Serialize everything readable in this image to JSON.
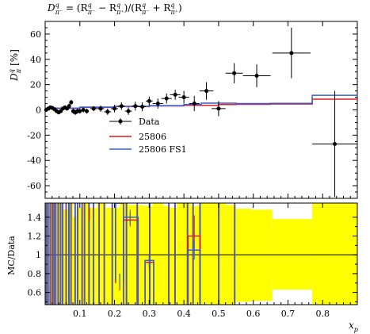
{
  "chart_data": {
    "type": "scatter",
    "title": "D^q_{π⁻} = (R^q_{π⁻} − R^q_{π⁺})/(R^q_{π⁻} + R^q_{π⁺})",
    "title_parts": {
      "lhs": "D",
      "lhs_sup": "q",
      "lhs_sub": "π⁻",
      "eq": " = (R",
      "a_sup": "q",
      "a_sub": "π⁻",
      "minus": " − R",
      "b_sup": "q",
      "b_sub": "π⁺",
      "mid": ")/(R",
      "c_sup": "q",
      "c_sub": "π⁻",
      "plus": " + R",
      "d_sup": "q",
      "d_sub": "π⁺",
      "end": ")"
    },
    "ylabel": "D",
    "ylabel_sup": "q",
    "ylabel_sub": "π",
    "ylabel_unit": "[%]",
    "xlabel": "x",
    "xlabel_sub": "p",
    "ratio_ylabel": "MC/Data",
    "xlim": [
      0.0,
      0.9
    ],
    "ylim": [
      -70,
      70
    ],
    "ratio_ylim": [
      0.47,
      1.55
    ],
    "xticks": [
      "0.1",
      "0.2",
      "0.3",
      "0.4",
      "0.5",
      "0.6",
      "0.7",
      "0.8"
    ],
    "xtick_values": [
      0.1,
      0.2,
      0.3,
      0.4,
      0.5,
      0.6,
      0.7,
      0.8
    ],
    "yticks": [
      "60",
      "40",
      "20",
      "0",
      "-20",
      "-40",
      "-60"
    ],
    "ytick_values": [
      60,
      40,
      20,
      0,
      -20,
      -40,
      -60
    ],
    "ratio_yticks": [
      "1.4",
      "1.2",
      "1",
      "0.8",
      "0.6"
    ],
    "ratio_ytick_values": [
      1.4,
      1.2,
      1.0,
      0.8,
      0.6
    ],
    "legend_position": "center",
    "legend": [
      "Data",
      "25806",
      "25806 FS1"
    ],
    "series": [
      {
        "name": "Data",
        "color": "#000000",
        "points": [
          {
            "x": 0.003,
            "y": 0.0,
            "xe": 0.003,
            "ye": 1.5
          },
          {
            "x": 0.009,
            "y": 1.0,
            "xe": 0.003,
            "ye": 1.5
          },
          {
            "x": 0.015,
            "y": 2.0,
            "xe": 0.003,
            "ye": 1.5
          },
          {
            "x": 0.021,
            "y": 1.5,
            "xe": 0.003,
            "ye": 1.5
          },
          {
            "x": 0.027,
            "y": 0.5,
            "xe": 0.003,
            "ye": 1.5
          },
          {
            "x": 0.033,
            "y": -1.0,
            "xe": 0.003,
            "ye": 1.5
          },
          {
            "x": 0.039,
            "y": -2.0,
            "xe": 0.003,
            "ye": 1.5
          },
          {
            "x": 0.045,
            "y": -1.0,
            "xe": 0.003,
            "ye": 1.5
          },
          {
            "x": 0.051,
            "y": 1.0,
            "xe": 0.003,
            "ye": 1.5
          },
          {
            "x": 0.057,
            "y": 2.0,
            "xe": 0.003,
            "ye": 1.5
          },
          {
            "x": 0.063,
            "y": 1.0,
            "xe": 0.003,
            "ye": 1.5
          },
          {
            "x": 0.069,
            "y": 3.0,
            "xe": 0.003,
            "ye": 2.0
          },
          {
            "x": 0.075,
            "y": 6.0,
            "xe": 0.003,
            "ye": 2.0
          },
          {
            "x": 0.081,
            "y": -1.0,
            "xe": 0.003,
            "ye": 2.0
          },
          {
            "x": 0.087,
            "y": -2.0,
            "xe": 0.003,
            "ye": 2.0
          },
          {
            "x": 0.093,
            "y": -1.0,
            "xe": 0.003,
            "ye": 2.0
          },
          {
            "x": 0.1,
            "y": -1.0,
            "xe": 0.004,
            "ye": 2.0
          },
          {
            "x": 0.11,
            "y": 0.0,
            "xe": 0.005,
            "ye": 2.0
          },
          {
            "x": 0.12,
            "y": -1.0,
            "xe": 0.005,
            "ye": 2.0
          },
          {
            "x": 0.14,
            "y": 1.0,
            "xe": 0.01,
            "ye": 2.0
          },
          {
            "x": 0.16,
            "y": 1.0,
            "xe": 0.01,
            "ye": 2.5
          },
          {
            "x": 0.18,
            "y": -1.5,
            "xe": 0.01,
            "ye": 2.5
          },
          {
            "x": 0.2,
            "y": 1.0,
            "xe": 0.01,
            "ye": 3.0
          },
          {
            "x": 0.22,
            "y": 3.0,
            "xe": 0.01,
            "ye": 3.0
          },
          {
            "x": 0.24,
            "y": -1.0,
            "xe": 0.01,
            "ye": 3.0
          },
          {
            "x": 0.26,
            "y": 3.0,
            "xe": 0.01,
            "ye": 3.5
          },
          {
            "x": 0.28,
            "y": 2.5,
            "xe": 0.01,
            "ye": 3.5
          },
          {
            "x": 0.3,
            "y": 7.0,
            "xe": 0.01,
            "ye": 3.5
          },
          {
            "x": 0.325,
            "y": 5.0,
            "xe": 0.015,
            "ye": 4.0
          },
          {
            "x": 0.35,
            "y": 9.0,
            "xe": 0.015,
            "ye": 4.0
          },
          {
            "x": 0.375,
            "y": 12.0,
            "xe": 0.015,
            "ye": 4.0
          },
          {
            "x": 0.4,
            "y": 10.0,
            "xe": 0.015,
            "ye": 5.0
          },
          {
            "x": 0.43,
            "y": 5.0,
            "xe": 0.015,
            "ye": 6.0
          },
          {
            "x": 0.465,
            "y": 15.0,
            "xe": 0.02,
            "ye": 7.0
          },
          {
            "x": 0.5,
            "y": 1.0,
            "xe": 0.02,
            "ye": 6.0
          },
          {
            "x": 0.545,
            "y": 29.0,
            "xe": 0.025,
            "ye": 8.0
          },
          {
            "x": 0.61,
            "y": 27.0,
            "xe": 0.04,
            "ye": 9.0
          },
          {
            "x": 0.71,
            "y": 45.0,
            "xe": 0.055,
            "ye": 20.0
          },
          {
            "x": 0.835,
            "y": -27.0,
            "xe": 0.065,
            "ye": 42.0
          }
        ]
      },
      {
        "name": "25806",
        "color": "#e41a1c",
        "edges": [
          0.0,
          0.1,
          0.2,
          0.3,
          0.4,
          0.5,
          0.55,
          0.65,
          0.77,
          0.9
        ],
        "values": [
          1.2,
          2.0,
          2.6,
          3.1,
          3.6,
          4.2,
          4.4,
          4.6,
          8.5
        ]
      },
      {
        "name": "25806 FS1",
        "color": "#3060e0",
        "edges": [
          0.0,
          0.1,
          0.2,
          0.3,
          0.4,
          0.45,
          0.55,
          0.65,
          0.77,
          0.9
        ],
        "values": [
          1.4,
          2.2,
          2.8,
          3.4,
          4.2,
          5.3,
          5.0,
          5.2,
          11.5
        ]
      }
    ],
    "ratio_band_color": "#ffff00",
    "ratio_band": [
      {
        "x0": 0.0,
        "x1": 0.05,
        "lo": 0.47,
        "hi": 1.55
      },
      {
        "x0": 0.05,
        "x1": 0.065,
        "lo": 0.47,
        "hi": 1.48
      },
      {
        "x0": 0.065,
        "x1": 0.08,
        "lo": 0.47,
        "hi": 1.55
      },
      {
        "x0": 0.08,
        "x1": 0.09,
        "lo": 0.47,
        "hi": 1.4
      },
      {
        "x0": 0.09,
        "x1": 0.105,
        "lo": 0.47,
        "hi": 1.5
      },
      {
        "x0": 0.105,
        "x1": 0.125,
        "lo": 0.47,
        "hi": 1.55
      },
      {
        "x0": 0.125,
        "x1": 0.15,
        "lo": 0.47,
        "hi": 1.5
      },
      {
        "x0": 0.15,
        "x1": 0.175,
        "lo": 0.47,
        "hi": 1.55
      },
      {
        "x0": 0.175,
        "x1": 0.215,
        "lo": 0.47,
        "hi": 1.5
      },
      {
        "x0": 0.215,
        "x1": 0.24,
        "lo": 0.47,
        "hi": 1.55
      },
      {
        "x0": 0.24,
        "x1": 0.285,
        "lo": 0.47,
        "hi": 1.53
      },
      {
        "x0": 0.285,
        "x1": 0.31,
        "lo": 0.47,
        "hi": 1.52
      },
      {
        "x0": 0.31,
        "x1": 0.34,
        "lo": 0.47,
        "hi": 1.55
      },
      {
        "x0": 0.34,
        "x1": 0.36,
        "lo": 0.47,
        "hi": 1.52
      },
      {
        "x0": 0.36,
        "x1": 0.38,
        "lo": 0.47,
        "hi": 1.5
      },
      {
        "x0": 0.38,
        "x1": 0.42,
        "lo": 0.47,
        "hi": 1.55
      },
      {
        "x0": 0.42,
        "x1": 0.445,
        "lo": 0.47,
        "hi": 1.52
      },
      {
        "x0": 0.445,
        "x1": 0.52,
        "lo": 0.47,
        "hi": 1.55
      },
      {
        "x0": 0.52,
        "x1": 0.55,
        "lo": 0.47,
        "hi": 1.53
      },
      {
        "x0": 0.55,
        "x1": 0.595,
        "lo": 0.5,
        "hi": 1.49
      },
      {
        "x0": 0.595,
        "x1": 0.655,
        "lo": 0.51,
        "hi": 1.48
      },
      {
        "x0": 0.655,
        "x1": 0.77,
        "lo": 0.63,
        "hi": 1.38
      },
      {
        "x0": 0.77,
        "x1": 0.9,
        "lo": 0.47,
        "hi": 1.55
      }
    ],
    "ratio_lines": [
      {
        "series": "25806",
        "x": [
          0.004,
          0.009,
          0.015,
          0.02,
          0.025,
          0.03,
          0.037,
          0.044,
          0.05,
          0.06,
          0.068,
          0.075,
          0.086,
          0.094,
          0.107,
          0.113,
          0.126,
          0.139,
          0.155,
          0.17,
          0.193,
          0.234,
          0.265,
          0.301,
          0.356,
          0.374,
          0.41,
          0.426,
          0.446,
          0.5,
          0.546
        ]
      },
      {
        "series": "25806 FS1",
        "x": [
          0.003,
          0.008,
          0.014,
          0.021,
          0.026,
          0.031,
          0.038,
          0.045,
          0.051,
          0.061,
          0.069,
          0.074,
          0.087,
          0.093,
          0.106,
          0.114,
          0.127,
          0.14,
          0.156,
          0.171,
          0.194,
          0.235,
          0.266,
          0.302,
          0.357,
          0.375,
          0.411,
          0.427,
          0.447,
          0.501,
          0.547
        ]
      }
    ],
    "ratio_boxes": [
      {
        "series": "25806",
        "x0": 0.203,
        "x1": 0.226,
        "lo": 0.7,
        "hi": 1.55
      },
      {
        "series": "25806",
        "x0": 0.226,
        "x1": 0.268,
        "lo": 0.47,
        "hi": 1.37
      },
      {
        "series": "25806",
        "x0": 0.288,
        "x1": 0.313,
        "lo": 0.47,
        "hi": 0.92
      },
      {
        "series": "25806",
        "x0": 0.412,
        "x1": 0.447,
        "lo": 0.47,
        "hi": 1.2
      },
      {
        "series": "25806 FS1",
        "x0": 0.203,
        "x1": 0.226,
        "lo": 0.73,
        "hi": 1.55
      },
      {
        "series": "25806 FS1",
        "x0": 0.226,
        "x1": 0.268,
        "lo": 0.47,
        "hi": 1.4
      },
      {
        "series": "25806 FS1",
        "x0": 0.288,
        "x1": 0.313,
        "lo": 0.47,
        "hi": 0.94
      },
      {
        "series": "25806 FS1",
        "x0": 0.412,
        "x1": 0.447,
        "lo": 0.47,
        "hi": 1.05
      }
    ],
    "ratio_errors": [
      {
        "series": "25806",
        "x": 0.128,
        "lo": 1.36,
        "hi": 1.5
      },
      {
        "series": "25806",
        "x": 0.215,
        "lo": 0.62,
        "hi": 0.8
      },
      {
        "series": "25806",
        "x": 0.245,
        "lo": 1.3,
        "hi": 1.45
      },
      {
        "series": "25806",
        "x": 0.3,
        "lo": 0.85,
        "hi": 1.0
      },
      {
        "series": "25806",
        "x": 0.43,
        "lo": 1.05,
        "hi": 1.42
      },
      {
        "series": "25806 FS1",
        "x": 0.215,
        "lo": 0.65,
        "hi": 0.8
      },
      {
        "series": "25806 FS1",
        "x": 0.245,
        "lo": 1.32,
        "hi": 1.48
      },
      {
        "series": "25806 FS1",
        "x": 0.3,
        "lo": 0.87,
        "hi": 1.0
      },
      {
        "series": "25806 FS1",
        "x": 0.43,
        "lo": 0.95,
        "hi": 1.15
      }
    ]
  }
}
